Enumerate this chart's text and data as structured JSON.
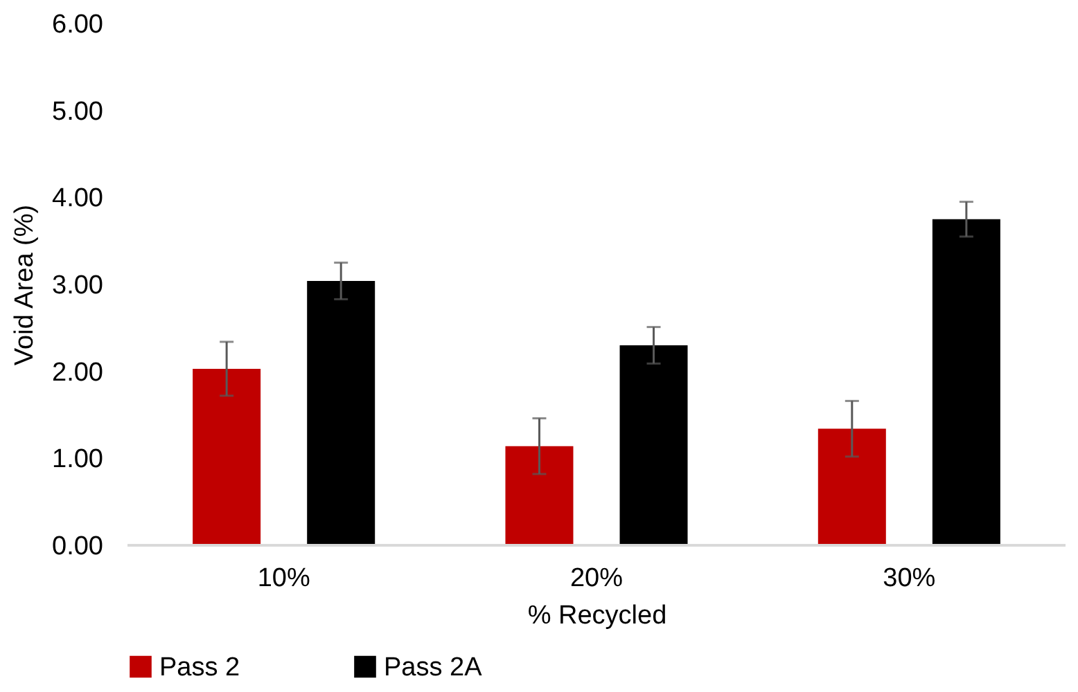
{
  "chart_data": {
    "type": "bar",
    "xlabel": "% Recycled",
    "ylabel": "Void Area (%)",
    "categories": [
      "10%",
      "20%",
      "30%"
    ],
    "series": [
      {
        "name": "Pass 2",
        "color": "#c00000",
        "values": [
          2.03,
          1.14,
          1.34
        ],
        "errors": [
          0.31,
          0.32,
          0.32
        ]
      },
      {
        "name": "Pass 2A",
        "color": "#000000",
        "values": [
          3.04,
          2.3,
          3.75
        ],
        "errors": [
          0.21,
          0.21,
          0.2
        ]
      }
    ],
    "ylim": [
      0,
      6
    ],
    "yticks": [
      {
        "value": 0,
        "label": "0.00"
      },
      {
        "value": 1,
        "label": "1.00"
      },
      {
        "value": 2,
        "label": "2.00"
      },
      {
        "value": 3,
        "label": "3.00"
      },
      {
        "value": 4,
        "label": "4.00"
      },
      {
        "value": 5,
        "label": "5.00"
      },
      {
        "value": 6,
        "label": "6.00"
      }
    ],
    "grid": false,
    "legend": "bottom"
  }
}
